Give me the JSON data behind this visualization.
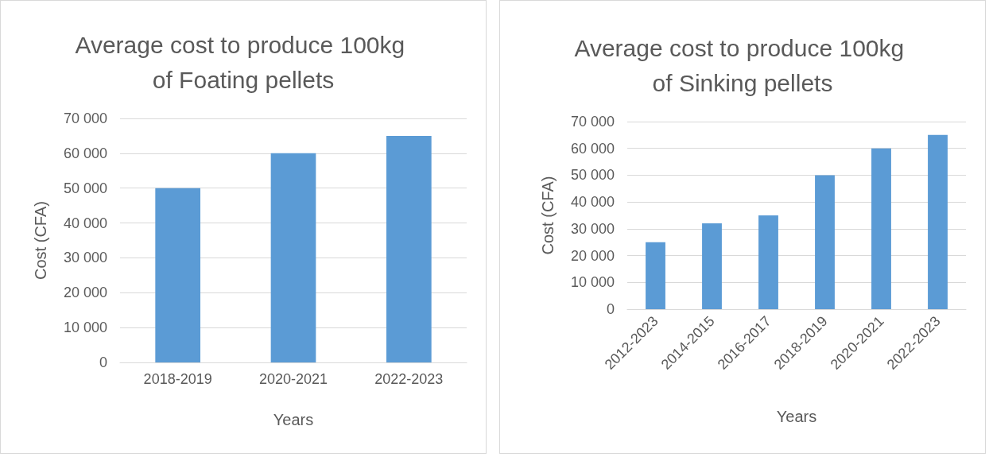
{
  "chart_data": [
    {
      "type": "bar",
      "title": "Average cost to produce 100kg of Foating pellets",
      "xlabel": "Years",
      "ylabel": "Cost (CFA)",
      "categories": [
        "2018-2019",
        "2020-2021",
        "2022-2023"
      ],
      "values": [
        50000,
        60000,
        65000
      ],
      "color": "#5b9bd5",
      "ylim": [
        0,
        70000
      ],
      "yticks": [
        {
          "value": 0,
          "label": "0"
        },
        {
          "value": 10000,
          "label": "10 000"
        },
        {
          "value": 20000,
          "label": "20 000"
        },
        {
          "value": 30000,
          "label": "30 000"
        },
        {
          "value": 40000,
          "label": "40 000"
        },
        {
          "value": 50000,
          "label": "50 000"
        },
        {
          "value": 60000,
          "label": "60 000"
        },
        {
          "value": 70000,
          "label": "70 000"
        }
      ],
      "grid": "y"
    },
    {
      "type": "bar",
      "title": "Average cost to produce 100kg of Sinking pellets",
      "xlabel": "Years",
      "ylabel": "Cost (CFA)",
      "categories": [
        "2012-2023",
        "2014-2015",
        "2016-2017",
        "2018-2019",
        "2020-2021",
        "2022-2023"
      ],
      "values": [
        25000,
        32000,
        35000,
        50000,
        60000,
        65000
      ],
      "color": "#5b9bd5",
      "ylim": [
        0,
        70000
      ],
      "yticks": [
        {
          "value": 0,
          "label": "0"
        },
        {
          "value": 10000,
          "label": "10 000"
        },
        {
          "value": 20000,
          "label": "20 000"
        },
        {
          "value": 30000,
          "label": "30 000"
        },
        {
          "value": 40000,
          "label": "40 000"
        },
        {
          "value": 50000,
          "label": "50 000"
        },
        {
          "value": 60000,
          "label": "60 000"
        },
        {
          "value": 70000,
          "label": "70 000"
        }
      ],
      "grid": "y"
    }
  ]
}
